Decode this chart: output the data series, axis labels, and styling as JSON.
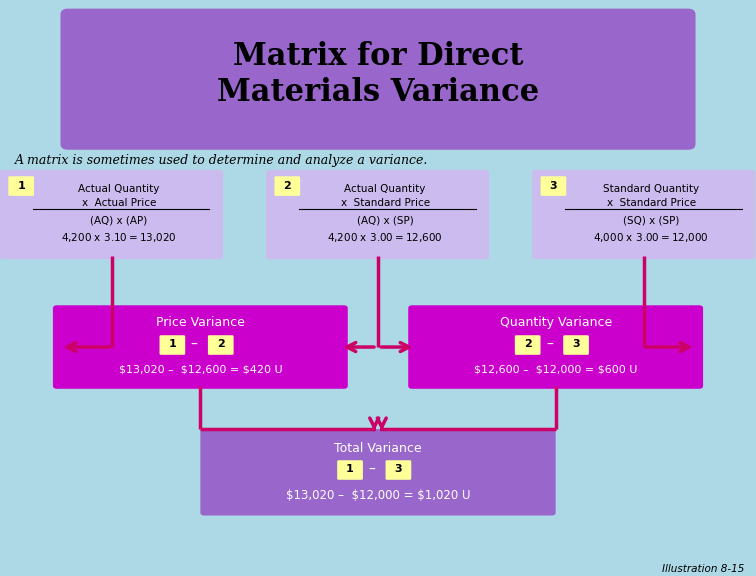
{
  "title": "Matrix for Direct\nMaterials Variance",
  "subtitle": "A matrix is sometimes used to determine and analyze a variance.",
  "bg_color": "#add8e6",
  "title_box_color": "#9966cc",
  "title_text_color": "#000000",
  "top_box_color": "#ccbbee",
  "variance_box_color": "#cc00cc",
  "total_box_color": "#9966cc",
  "arrow_color": "#cc0066",
  "num_box_color": "#ffff99",
  "box1_lines": [
    "Actual Quantity",
    "x  Actual Price",
    "(AQ) x (AP)",
    "4,200 x $3.10 = $13,020"
  ],
  "box2_lines": [
    "Actual Quantity",
    "x  Standard Price",
    "(AQ) x (SP)",
    "4,200 x $3.00 = $12,600"
  ],
  "box3_lines": [
    "Standard Quantity",
    "x  Standard Price",
    "(SQ) x (SP)",
    "4,000 x $3.00 = $12,000"
  ],
  "price_var_title": "Price Variance",
  "price_var_formula": "$13,020 –  $12,600 = $420 U",
  "qty_var_title": "Quantity Variance",
  "qty_var_formula": "$12,600 –  $12,000 = $600 U",
  "total_var_title": "Total Variance",
  "total_var_formula": "$13,020 –  $12,000 = $1,020 U",
  "illustration": "Illustration 8-15"
}
